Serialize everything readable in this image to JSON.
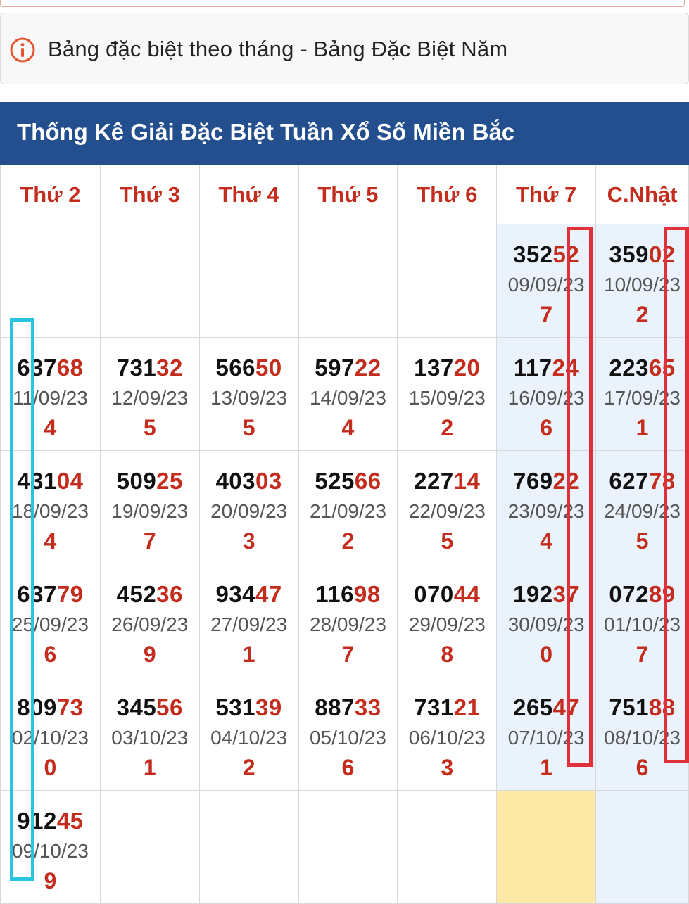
{
  "notice": {
    "text": "Bảng đặc biệt theo tháng - Bảng Đặc Biệt Năm",
    "icon": "info-circle-icon"
  },
  "header": {
    "title": "Thống Kê Giải Đặc Biệt Tuần Xổ Số Miền Bắc"
  },
  "columns": [
    "Thứ 2",
    "Thứ 3",
    "Thứ 4",
    "Thứ 5",
    "Thứ 6",
    "Thứ 7",
    "C.Nhật"
  ],
  "rows": [
    [
      null,
      null,
      null,
      null,
      null,
      {
        "head": "352",
        "tail": "52",
        "date": "09/09/23",
        "digit": "7"
      },
      {
        "head": "359",
        "tail": "02",
        "date": "10/09/23",
        "digit": "2"
      }
    ],
    [
      {
        "head": "637",
        "tail": "68",
        "date": "11/09/23",
        "digit": "4"
      },
      {
        "head": "731",
        "tail": "32",
        "date": "12/09/23",
        "digit": "5"
      },
      {
        "head": "566",
        "tail": "50",
        "date": "13/09/23",
        "digit": "5"
      },
      {
        "head": "597",
        "tail": "22",
        "date": "14/09/23",
        "digit": "4"
      },
      {
        "head": "137",
        "tail": "20",
        "date": "15/09/23",
        "digit": "2"
      },
      {
        "head": "117",
        "tail": "24",
        "date": "16/09/23",
        "digit": "6"
      },
      {
        "head": "223",
        "tail": "65",
        "date": "17/09/23",
        "digit": "1"
      }
    ],
    [
      {
        "head": "431",
        "tail": "04",
        "date": "18/09/23",
        "digit": "4"
      },
      {
        "head": "509",
        "tail": "25",
        "date": "19/09/23",
        "digit": "7"
      },
      {
        "head": "403",
        "tail": "03",
        "date": "20/09/23",
        "digit": "3"
      },
      {
        "head": "525",
        "tail": "66",
        "date": "21/09/23",
        "digit": "2"
      },
      {
        "head": "227",
        "tail": "14",
        "date": "22/09/23",
        "digit": "5"
      },
      {
        "head": "769",
        "tail": "22",
        "date": "23/09/23",
        "digit": "4"
      },
      {
        "head": "627",
        "tail": "78",
        "date": "24/09/23",
        "digit": "5"
      }
    ],
    [
      {
        "head": "637",
        "tail": "79",
        "date": "25/09/23",
        "digit": "6"
      },
      {
        "head": "452",
        "tail": "36",
        "date": "26/09/23",
        "digit": "9"
      },
      {
        "head": "934",
        "tail": "47",
        "date": "27/09/23",
        "digit": "1"
      },
      {
        "head": "116",
        "tail": "98",
        "date": "28/09/23",
        "digit": "7"
      },
      {
        "head": "070",
        "tail": "44",
        "date": "29/09/23",
        "digit": "8"
      },
      {
        "head": "192",
        "tail": "37",
        "date": "30/09/23",
        "digit": "0"
      },
      {
        "head": "072",
        "tail": "89",
        "date": "01/10/23",
        "digit": "7"
      }
    ],
    [
      {
        "head": "809",
        "tail": "73",
        "date": "02/10/23",
        "digit": "0"
      },
      {
        "head": "345",
        "tail": "56",
        "date": "03/10/23",
        "digit": "1"
      },
      {
        "head": "531",
        "tail": "39",
        "date": "04/10/23",
        "digit": "2"
      },
      {
        "head": "887",
        "tail": "33",
        "date": "05/10/23",
        "digit": "6"
      },
      {
        "head": "731",
        "tail": "21",
        "date": "06/10/23",
        "digit": "3"
      },
      {
        "head": "265",
        "tail": "47",
        "date": "07/10/23",
        "digit": "1"
      },
      {
        "head": "751",
        "tail": "88",
        "date": "08/10/23",
        "digit": "6"
      }
    ],
    [
      {
        "head": "912",
        "tail": "45",
        "date": "09/10/23",
        "digit": "9"
      },
      null,
      null,
      null,
      null,
      null,
      null
    ]
  ],
  "colors": {
    "header_bg": "#244f8e",
    "accent_red": "#c42c1d",
    "weekend_bg": "#eaf3fc",
    "highlight_yellow": "#feeaa6",
    "marker_cyan": "#29c3e3",
    "marker_red": "#e0303c"
  }
}
